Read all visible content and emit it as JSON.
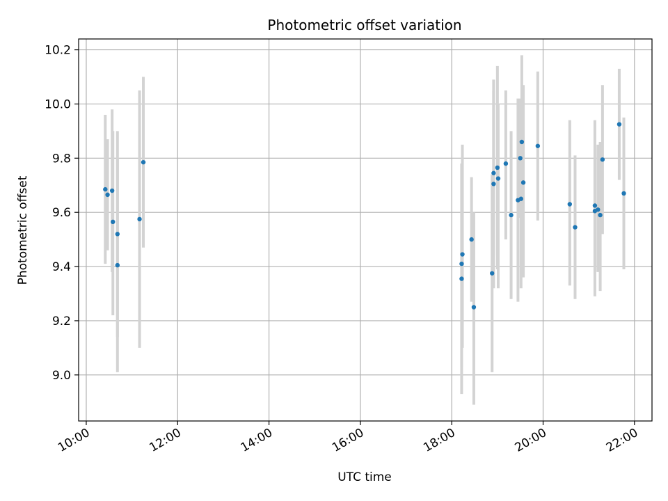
{
  "chart_data": {
    "type": "scatter",
    "title": "Photometric offset variation",
    "xlabel": "UTC time",
    "ylabel": "Photometric offset",
    "x_unit": "time of day (UTC)",
    "xlim": [
      "09:50",
      "22:23"
    ],
    "ylim": [
      8.83,
      10.24
    ],
    "xticks": [
      "10:00",
      "12:00",
      "14:00",
      "16:00",
      "18:00",
      "20:00",
      "22:00"
    ],
    "yticks": [
      9.0,
      9.2,
      9.4,
      9.6,
      9.8,
      10.0,
      10.2
    ],
    "grid": true,
    "legend": "none",
    "colors": {
      "points": "#1f77b4",
      "errorbars": "#d3d3d3",
      "grid": "#b0b0b0"
    },
    "points": [
      {
        "x": "10:25",
        "y": 9.685,
        "lo": 9.41,
        "hi": 9.96
      },
      {
        "x": "10:28",
        "y": 9.665,
        "lo": 9.46,
        "hi": 9.87
      },
      {
        "x": "10:34",
        "y": 9.68,
        "lo": 9.38,
        "hi": 9.98
      },
      {
        "x": "10:35",
        "y": 9.565,
        "lo": 9.22,
        "hi": 9.9
      },
      {
        "x": "10:41",
        "y": 9.52,
        "lo": 9.14,
        "hi": 9.9
      },
      {
        "x": "10:41",
        "y": 9.405,
        "lo": 9.01,
        "hi": 9.8
      },
      {
        "x": "11:10",
        "y": 9.575,
        "lo": 9.1,
        "hi": 10.05
      },
      {
        "x": "11:15",
        "y": 9.785,
        "lo": 9.47,
        "hi": 10.1
      },
      {
        "x": "18:13",
        "y": 9.41,
        "lo": 9.03,
        "hi": 9.78
      },
      {
        "x": "18:13",
        "y": 9.355,
        "lo": 8.93,
        "hi": 9.78
      },
      {
        "x": "18:14",
        "y": 9.445,
        "lo": 9.1,
        "hi": 9.85
      },
      {
        "x": "18:26",
        "y": 9.5,
        "lo": 9.27,
        "hi": 9.73
      },
      {
        "x": "18:29",
        "y": 9.25,
        "lo": 8.89,
        "hi": 9.6
      },
      {
        "x": "18:53",
        "y": 9.375,
        "lo": 9.01,
        "hi": 9.74
      },
      {
        "x": "18:55",
        "y": 9.745,
        "lo": 9.44,
        "hi": 10.05
      },
      {
        "x": "18:55",
        "y": 9.705,
        "lo": 9.32,
        "hi": 10.09
      },
      {
        "x": "19:00",
        "y": 9.765,
        "lo": 9.39,
        "hi": 10.14
      },
      {
        "x": "19:01",
        "y": 9.725,
        "lo": 9.32,
        "hi": 10.0
      },
      {
        "x": "19:11",
        "y": 9.78,
        "lo": 9.5,
        "hi": 10.05
      },
      {
        "x": "19:18",
        "y": 9.59,
        "lo": 9.28,
        "hi": 9.9
      },
      {
        "x": "19:27",
        "y": 9.645,
        "lo": 9.27,
        "hi": 10.02
      },
      {
        "x": "19:30",
        "y": 9.8,
        "lo": 9.58,
        "hi": 10.02
      },
      {
        "x": "19:31",
        "y": 9.65,
        "lo": 9.32,
        "hi": 9.98
      },
      {
        "x": "19:32",
        "y": 9.86,
        "lo": 9.54,
        "hi": 10.18
      },
      {
        "x": "19:34",
        "y": 9.71,
        "lo": 9.36,
        "hi": 10.07
      },
      {
        "x": "19:53",
        "y": 9.845,
        "lo": 9.57,
        "hi": 10.12
      },
      {
        "x": "20:35",
        "y": 9.63,
        "lo": 9.33,
        "hi": 9.94
      },
      {
        "x": "20:42",
        "y": 9.545,
        "lo": 9.28,
        "hi": 9.81
      },
      {
        "x": "21:08",
        "y": 9.625,
        "lo": 9.29,
        "hi": 9.94
      },
      {
        "x": "21:08",
        "y": 9.605,
        "lo": 9.4,
        "hi": 9.8
      },
      {
        "x": "21:12",
        "y": 9.61,
        "lo": 9.38,
        "hi": 9.85
      },
      {
        "x": "21:15",
        "y": 9.59,
        "lo": 9.31,
        "hi": 9.86
      },
      {
        "x": "21:18",
        "y": 9.795,
        "lo": 9.52,
        "hi": 10.07
      },
      {
        "x": "21:40",
        "y": 9.925,
        "lo": 9.72,
        "hi": 10.13
      },
      {
        "x": "21:46",
        "y": 9.67,
        "lo": 9.39,
        "hi": 9.95
      }
    ]
  }
}
